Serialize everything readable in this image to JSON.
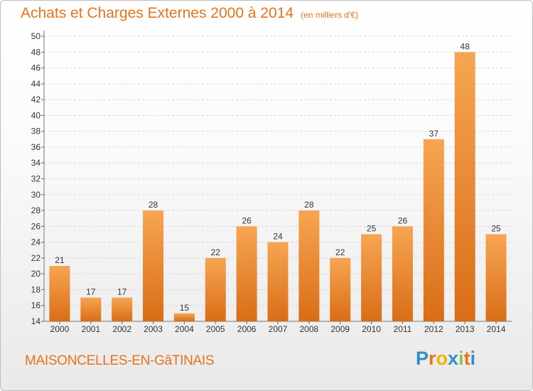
{
  "chart_data": {
    "type": "bar",
    "title": "Achats et Charges Externes 2000 à 2014",
    "subtitle": "(en milliers d'€)",
    "categories": [
      "2000",
      "2001",
      "2002",
      "2003",
      "2004",
      "2005",
      "2006",
      "2007",
      "2008",
      "2009",
      "2010",
      "2011",
      "2012",
      "2013",
      "2014"
    ],
    "values": [
      21,
      17,
      17,
      28,
      15,
      22,
      26,
      24,
      28,
      22,
      25,
      26,
      37,
      48,
      25
    ],
    "ylim": [
      14,
      50
    ],
    "yticks": [
      14,
      16,
      18,
      20,
      22,
      24,
      26,
      28,
      30,
      32,
      34,
      36,
      38,
      40,
      42,
      44,
      46,
      48,
      50
    ],
    "grid": true,
    "colors": {
      "bar_light": "#f7a552",
      "bar_dark": "#d96d17",
      "text_accent": "#e8731a"
    }
  },
  "footer": {
    "commune": "MAISONCELLES-EN-GâTINAIS",
    "logo_text": "Proxiti",
    "logo_colors": [
      "#2e8ec9",
      "#e8731a",
      "#f3b600",
      "#2e8ec9",
      "#8cc63f",
      "#e8731a",
      "#2e8ec9"
    ]
  }
}
